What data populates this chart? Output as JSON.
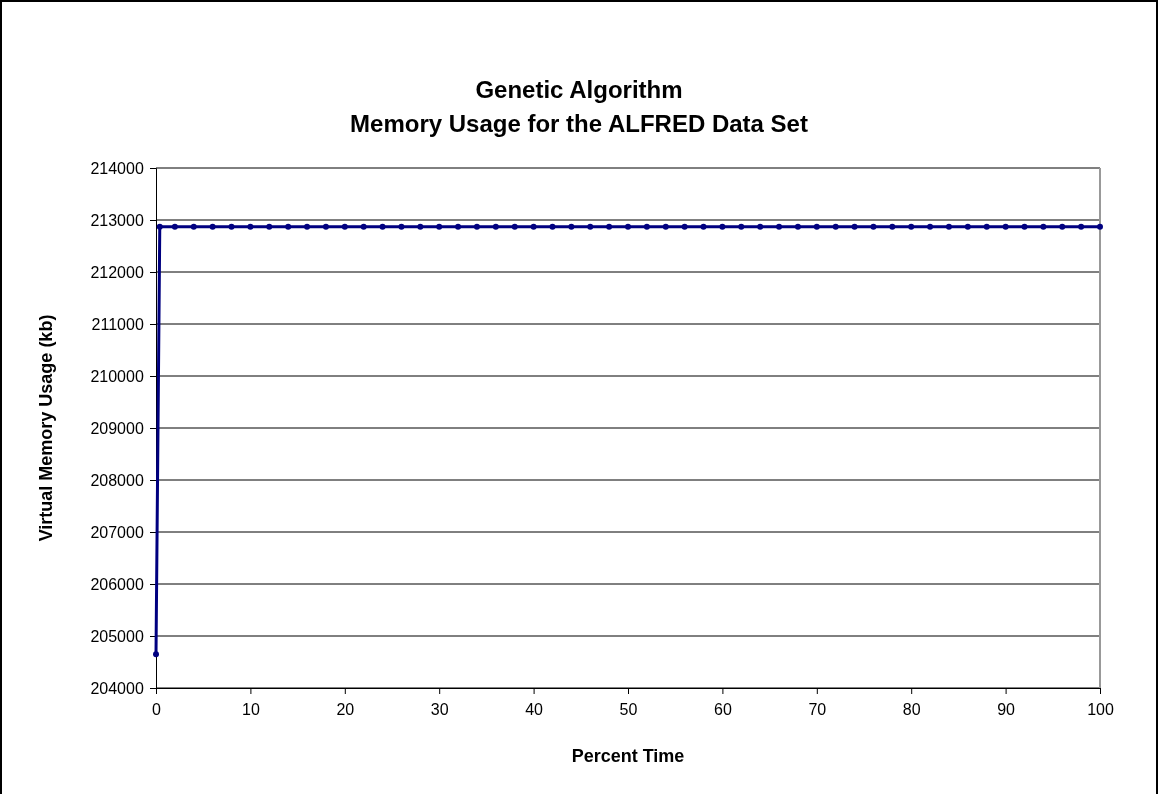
{
  "chart_data": {
    "type": "line",
    "title": "Genetic Algorithm",
    "subtitle": "Memory Usage for the ALFRED Data Set",
    "xlabel": "Percent Time",
    "ylabel": "Virtual Memory Usage (kb)",
    "x": [
      0,
      0.4,
      2,
      4,
      6,
      8,
      10,
      12,
      14,
      16,
      18,
      20,
      22,
      24,
      26,
      28,
      30,
      32,
      34,
      36,
      38,
      40,
      42,
      44,
      46,
      48,
      50,
      52,
      54,
      56,
      58,
      60,
      62,
      64,
      66,
      68,
      70,
      72,
      74,
      76,
      78,
      80,
      82,
      84,
      86,
      88,
      90,
      92,
      94,
      96,
      98,
      100
    ],
    "series": [
      {
        "color": "#000080",
        "values": [
          204650,
          212870,
          212870,
          212870,
          212870,
          212870,
          212870,
          212870,
          212870,
          212870,
          212870,
          212870,
          212870,
          212870,
          212870,
          212870,
          212870,
          212870,
          212870,
          212870,
          212870,
          212870,
          212870,
          212870,
          212870,
          212870,
          212870,
          212870,
          212870,
          212870,
          212870,
          212870,
          212870,
          212870,
          212870,
          212870,
          212870,
          212870,
          212870,
          212870,
          212870,
          212870,
          212870,
          212870,
          212870,
          212870,
          212870,
          212870,
          212870,
          212870,
          212870,
          212870
        ]
      }
    ],
    "xlim": [
      0,
      100
    ],
    "xticks": [
      0,
      10,
      20,
      30,
      40,
      50,
      60,
      70,
      80,
      90,
      100
    ],
    "ylim": [
      204000,
      214000
    ],
    "yticks": [
      204000,
      205000,
      206000,
      207000,
      208000,
      209000,
      210000,
      211000,
      212000,
      213000,
      214000
    ],
    "grid": "y",
    "marker": "circle",
    "line_style": "solid"
  }
}
